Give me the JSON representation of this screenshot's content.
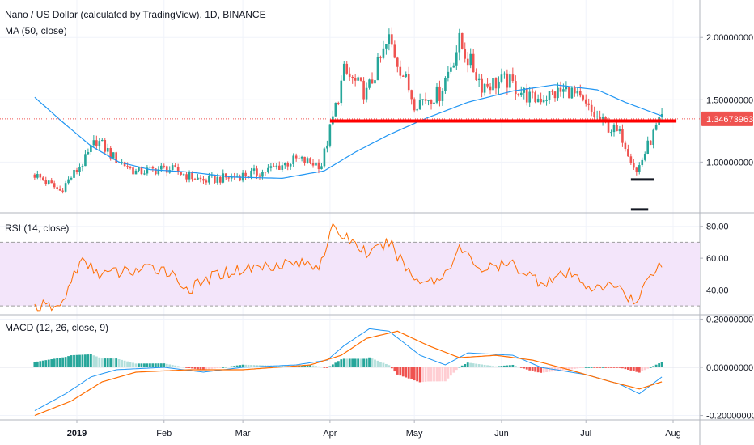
{
  "header": {
    "title": "Nano / US Dollar (calculated by TradingView), 1D, BINANCE",
    "indicator": "MA (50, close)"
  },
  "price_badge": "1.34673963",
  "colors": {
    "up": "#26a69a",
    "down": "#ef5350",
    "ma": "#2196f3",
    "rsi": "#ff6d00",
    "macd": "#2196f3",
    "signal": "#ff6d00",
    "support": "#ff0000",
    "badge": "#ef5350",
    "rsi_band": "#f3e5fa"
  },
  "chart_data": [
    {
      "type": "candlestick",
      "name": "price",
      "title": "Nano / US Dollar (calculated by TradingView), 1D, BINANCE",
      "indicator": "MA (50, close)",
      "ylim": [
        0.6,
        2.3
      ],
      "y_ticks": [
        "2.00000000",
        "1.50000000",
        "1.00000000"
      ],
      "y_tick_values": [
        2.0,
        1.5,
        1.0
      ],
      "x_ticks": [
        "2019",
        "Feb",
        "Mar",
        "Apr",
        "May",
        "Jun",
        "Jul",
        "Aug"
      ],
      "last_price": 1.34673963,
      "support_level": 1.33,
      "support_range": [
        "2019-04-01",
        "2019-07-28"
      ],
      "markers": [
        {
          "level": 0.86,
          "range": [
            "2019-07-17",
            "2019-07-24"
          ]
        },
        {
          "level": 0.62,
          "range": [
            "2019-07-17",
            "2019-07-22"
          ]
        }
      ],
      "ma_keypoints": [
        [
          "2018-12-17",
          1.52
        ],
        [
          "2018-12-27",
          1.32
        ],
        [
          "2019-01-06",
          1.13
        ],
        [
          "2019-01-16",
          1.0
        ],
        [
          "2019-01-27",
          0.94
        ],
        [
          "2019-02-10",
          0.92
        ],
        [
          "2019-02-25",
          0.88
        ],
        [
          "2019-03-15",
          0.87
        ],
        [
          "2019-03-30",
          0.93
        ],
        [
          "2019-04-10",
          1.08
        ],
        [
          "2019-04-22",
          1.22
        ],
        [
          "2019-05-05",
          1.35
        ],
        [
          "2019-05-20",
          1.48
        ],
        [
          "2019-06-05",
          1.57
        ],
        [
          "2019-06-20",
          1.62
        ],
        [
          "2019-07-05",
          1.58
        ],
        [
          "2019-07-15",
          1.48
        ],
        [
          "2019-07-28",
          1.37
        ]
      ],
      "close_keypoints": [
        [
          "2018-12-17",
          0.9
        ],
        [
          "2018-12-26",
          0.77
        ],
        [
          "2019-01-04",
          1.02
        ],
        [
          "2019-01-08",
          1.18
        ],
        [
          "2019-01-14",
          1.04
        ],
        [
          "2019-01-22",
          0.92
        ],
        [
          "2019-02-02",
          0.95
        ],
        [
          "2019-02-15",
          0.85
        ],
        [
          "2019-02-25",
          0.88
        ],
        [
          "2019-03-08",
          0.92
        ],
        [
          "2019-03-20",
          1.02
        ],
        [
          "2019-03-29",
          0.98
        ],
        [
          "2019-04-02",
          1.35
        ],
        [
          "2019-04-06",
          1.72
        ],
        [
          "2019-04-14",
          1.55
        ],
        [
          "2019-04-22",
          1.98
        ],
        [
          "2019-05-01",
          1.48
        ],
        [
          "2019-05-10",
          1.55
        ],
        [
          "2019-05-17",
          1.96
        ],
        [
          "2019-05-25",
          1.62
        ],
        [
          "2019-06-03",
          1.65
        ],
        [
          "2019-06-12",
          1.5
        ],
        [
          "2019-06-25",
          1.58
        ],
        [
          "2019-07-05",
          1.35
        ],
        [
          "2019-07-14",
          1.2
        ],
        [
          "2019-07-19",
          0.92
        ],
        [
          "2019-07-24",
          1.18
        ],
        [
          "2019-07-28",
          1.35
        ]
      ]
    },
    {
      "type": "line",
      "name": "rsi",
      "title": "RSI (14, close)",
      "ylim": [
        25,
        88
      ],
      "y_ticks": [
        "80.00",
        "60.00",
        "40.00"
      ],
      "y_tick_values": [
        80,
        60,
        40
      ],
      "band": [
        30,
        70
      ],
      "keypoints": [
        [
          "2018-12-17",
          30
        ],
        [
          "2018-12-26",
          29
        ],
        [
          "2019-01-02",
          58
        ],
        [
          "2019-01-10",
          50
        ],
        [
          "2019-01-20",
          52
        ],
        [
          "2019-02-01",
          54
        ],
        [
          "2019-02-10",
          40
        ],
        [
          "2019-02-20",
          50
        ],
        [
          "2019-03-01",
          53
        ],
        [
          "2019-03-15",
          57
        ],
        [
          "2019-03-28",
          56
        ],
        [
          "2019-04-02",
          78
        ],
        [
          "2019-04-08",
          72
        ],
        [
          "2019-04-15",
          62
        ],
        [
          "2019-04-22",
          70
        ],
        [
          "2019-05-01",
          47
        ],
        [
          "2019-05-10",
          46
        ],
        [
          "2019-05-17",
          66
        ],
        [
          "2019-05-25",
          53
        ],
        [
          "2019-06-05",
          56
        ],
        [
          "2019-06-15",
          45
        ],
        [
          "2019-06-25",
          50
        ],
        [
          "2019-07-05",
          40
        ],
        [
          "2019-07-12",
          44
        ],
        [
          "2019-07-19",
          31
        ],
        [
          "2019-07-24",
          52
        ],
        [
          "2019-07-28",
          56
        ]
      ]
    },
    {
      "type": "line",
      "name": "macd",
      "title": "MACD (12, 26, close, 9)",
      "ylim": [
        -0.215,
        0.215
      ],
      "y_ticks": [
        "0.20000000",
        "0.00000000",
        "-0.20000000"
      ],
      "y_tick_values": [
        0.2,
        0.0,
        -0.2
      ],
      "macd_keypoints": [
        [
          "2018-12-17",
          -0.18
        ],
        [
          "2018-12-28",
          -0.11
        ],
        [
          "2019-01-06",
          -0.04
        ],
        [
          "2019-01-15",
          -0.01
        ],
        [
          "2019-02-01",
          0.0
        ],
        [
          "2019-02-15",
          -0.02
        ],
        [
          "2019-03-01",
          0.0
        ],
        [
          "2019-03-20",
          0.01
        ],
        [
          "2019-03-31",
          0.03
        ],
        [
          "2019-04-06",
          0.09
        ],
        [
          "2019-04-15",
          0.16
        ],
        [
          "2019-04-22",
          0.15
        ],
        [
          "2019-05-03",
          0.05
        ],
        [
          "2019-05-12",
          0.01
        ],
        [
          "2019-05-20",
          0.06
        ],
        [
          "2019-06-05",
          0.05
        ],
        [
          "2019-06-15",
          0.0
        ],
        [
          "2019-07-01",
          -0.03
        ],
        [
          "2019-07-13",
          -0.07
        ],
        [
          "2019-07-20",
          -0.11
        ],
        [
          "2019-07-28",
          -0.04
        ]
      ],
      "signal_keypoints": [
        [
          "2018-12-17",
          -0.2
        ],
        [
          "2018-12-30",
          -0.14
        ],
        [
          "2019-01-10",
          -0.06
        ],
        [
          "2019-01-22",
          -0.02
        ],
        [
          "2019-02-10",
          -0.01
        ],
        [
          "2019-03-01",
          -0.01
        ],
        [
          "2019-03-25",
          0.01
        ],
        [
          "2019-04-05",
          0.05
        ],
        [
          "2019-04-14",
          0.12
        ],
        [
          "2019-04-25",
          0.15
        ],
        [
          "2019-05-06",
          0.09
        ],
        [
          "2019-05-17",
          0.04
        ],
        [
          "2019-05-30",
          0.05
        ],
        [
          "2019-06-12",
          0.03
        ],
        [
          "2019-06-25",
          -0.01
        ],
        [
          "2019-07-10",
          -0.06
        ],
        [
          "2019-07-20",
          -0.09
        ],
        [
          "2019-07-28",
          -0.06
        ]
      ]
    }
  ]
}
